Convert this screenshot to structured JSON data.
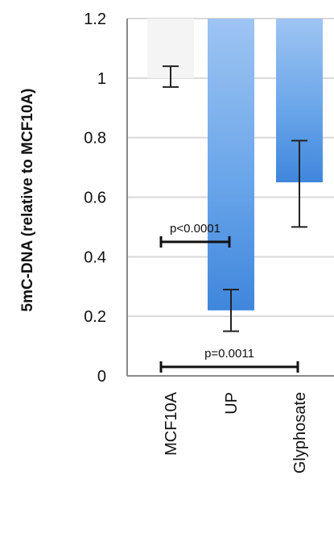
{
  "chart_data": {
    "type": "bar",
    "title": "",
    "xlabel": "",
    "ylabel": "5mC-DNA (relative to MCF10A)",
    "ylim": [
      0,
      1.2
    ],
    "yticks": [
      "0",
      "0.2",
      "0.4",
      "0.6",
      "0.8",
      "1",
      "1.2"
    ],
    "grid": true,
    "categories": [
      "MCF10A",
      "UP",
      "Glyphosate"
    ],
    "values": [
      1.0,
      0.22,
      0.65
    ],
    "error_low": [
      0.97,
      0.15,
      0.5
    ],
    "error_high": [
      1.04,
      0.29,
      0.79
    ],
    "bar_color": "#4a8fe0",
    "annotations": [
      {
        "text": "p<0.0001",
        "from": "MCF10A",
        "to": "UP",
        "y": 0.45
      },
      {
        "text": "p=0.0011",
        "from": "MCF10A",
        "to": "Glyphosate",
        "y": 0.03
      }
    ]
  }
}
